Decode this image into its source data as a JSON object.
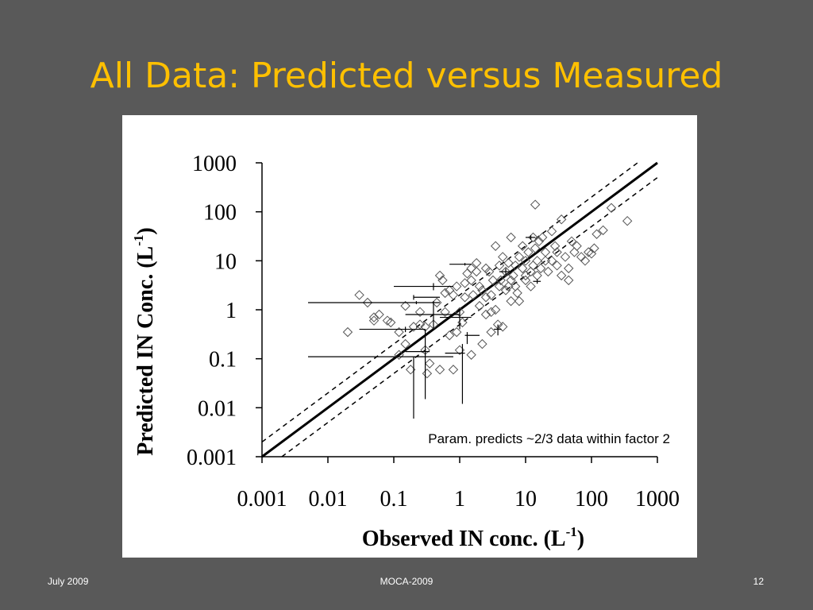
{
  "slide": {
    "title": "All Data: Predicted versus Measured",
    "footer_date": "July 2009",
    "footer_center": "MOCA-2009",
    "footer_page": "12"
  },
  "colors": {
    "background": "#595959",
    "title": "#FFC000",
    "panel": "#ffffff",
    "ink": "#000000",
    "marker": "#555555"
  },
  "chart_data": {
    "type": "scatter",
    "title": "",
    "xlabel": "Observed IN conc. (L",
    "xlabel_sup": "-1",
    "xlabel_close": ")",
    "ylabel": "Predicted IN Conc. (L",
    "ylabel_sup": "-1",
    "ylabel_close": ")",
    "xscale": "log",
    "yscale": "log",
    "xlim": [
      0.001,
      1000
    ],
    "ylim": [
      0.001,
      1000
    ],
    "xticks": [
      0.001,
      0.01,
      0.1,
      1,
      10,
      100,
      1000
    ],
    "yticks": [
      0.001,
      0.01,
      0.1,
      1,
      10,
      100,
      1000
    ],
    "xtick_labels": [
      "0.001",
      "0.01",
      "0.1",
      "1",
      "10",
      "100",
      "1000"
    ],
    "ytick_labels": [
      "0.001",
      "0.01",
      "0.1",
      "1",
      "10",
      "100",
      "1000"
    ],
    "grid": false,
    "annotation": "Param. predicts ~2/3 data within factor 2",
    "lines": {
      "one_to_one": {
        "style": "solid",
        "factor": 1
      },
      "factor_bounds": {
        "style": "dashed",
        "factors": [
          2,
          0.5
        ]
      }
    },
    "series": [
      {
        "marker": "diamond-open",
        "points": [
          [
            0.02,
            0.35
          ],
          [
            0.03,
            2.0
          ],
          [
            0.04,
            1.4
          ],
          [
            0.05,
            0.6
          ],
          [
            0.05,
            0.7
          ],
          [
            0.06,
            0.8
          ],
          [
            0.08,
            0.6
          ],
          [
            0.09,
            0.55
          ],
          [
            0.12,
            0.35
          ],
          [
            0.15,
            0.2
          ],
          [
            0.18,
            0.06
          ],
          [
            0.2,
            0.45
          ],
          [
            0.25,
            0.5
          ],
          [
            0.3,
            0.15
          ],
          [
            0.32,
            0.05
          ],
          [
            0.35,
            0.08
          ],
          [
            0.4,
            0.5
          ],
          [
            0.45,
            1.4
          ],
          [
            0.5,
            0.06
          ],
          [
            0.5,
            5.0
          ],
          [
            0.55,
            4.0
          ],
          [
            0.6,
            0.9
          ],
          [
            0.7,
            2.5
          ],
          [
            0.8,
            2.0
          ],
          [
            0.8,
            0.06
          ],
          [
            0.9,
            3.0
          ],
          [
            1.0,
            0.15
          ],
          [
            1.0,
            0.9
          ],
          [
            1.1,
            0.55
          ],
          [
            1.2,
            3.5
          ],
          [
            1.3,
            5.5
          ],
          [
            1.5,
            7.0
          ],
          [
            1.5,
            4.0
          ],
          [
            1.6,
            2.0
          ],
          [
            1.8,
            6.0
          ],
          [
            1.8,
            9.0
          ],
          [
            2.0,
            1.2
          ],
          [
            2.0,
            3.0
          ],
          [
            2.2,
            2.5
          ],
          [
            2.5,
            0.8
          ],
          [
            2.5,
            7.0
          ],
          [
            2.5,
            1.8
          ],
          [
            2.8,
            6.0
          ],
          [
            3.0,
            2.0
          ],
          [
            3.0,
            0.9
          ],
          [
            3.2,
            4.0
          ],
          [
            3.5,
            20
          ],
          [
            3.5,
            1.0
          ],
          [
            3.8,
            0.5
          ],
          [
            4.0,
            3.0
          ],
          [
            4.0,
            8.0
          ],
          [
            4.2,
            4.0
          ],
          [
            4.5,
            0.45
          ],
          [
            4.5,
            12.0
          ],
          [
            5.0,
            2.5
          ],
          [
            5.0,
            6.0
          ],
          [
            5.5,
            3.0
          ],
          [
            5.5,
            9.0
          ],
          [
            6.0,
            1.5
          ],
          [
            6.0,
            30
          ],
          [
            6.5,
            5.0
          ],
          [
            7.0,
            8.0
          ],
          [
            7.0,
            3.0
          ],
          [
            7.5,
            2.2
          ],
          [
            8.0,
            12.0
          ],
          [
            8.0,
            1.5
          ],
          [
            9.0,
            7.0
          ],
          [
            9.0,
            20
          ],
          [
            10,
            5.0
          ],
          [
            10,
            10
          ],
          [
            10,
            4.0
          ],
          [
            11,
            15
          ],
          [
            12,
            3.0
          ],
          [
            12,
            6.0
          ],
          [
            13,
            30
          ],
          [
            13,
            8.0
          ],
          [
            14,
            140
          ],
          [
            14,
            18
          ],
          [
            15,
            5.0
          ],
          [
            15,
            10
          ],
          [
            16,
            25
          ],
          [
            17,
            7.0
          ],
          [
            18,
            30
          ],
          [
            20,
            10
          ],
          [
            20,
            15
          ],
          [
            22,
            6.0
          ],
          [
            25,
            40
          ],
          [
            25,
            10
          ],
          [
            28,
            20
          ],
          [
            30,
            8.0
          ],
          [
            30,
            15
          ],
          [
            35,
            70
          ],
          [
            35,
            5.0
          ],
          [
            40,
            12
          ],
          [
            45,
            4.0
          ],
          [
            45,
            7.0
          ],
          [
            50,
            25
          ],
          [
            55,
            15
          ],
          [
            60,
            20
          ],
          [
            70,
            12
          ],
          [
            80,
            10
          ],
          [
            90,
            15
          ],
          [
            100,
            14
          ],
          [
            110,
            18
          ],
          [
            120,
            35
          ],
          [
            150,
            42
          ],
          [
            200,
            120
          ],
          [
            350,
            65
          ],
          [
            1.2,
            1.8
          ],
          [
            0.6,
            2.2
          ],
          [
            0.25,
            0.9
          ],
          [
            0.15,
            1.2
          ],
          [
            0.12,
            0.12
          ],
          [
            0.3,
            0.45
          ],
          [
            0.7,
            0.3
          ],
          [
            2.2,
            0.2
          ],
          [
            3.0,
            0.35
          ],
          [
            1.5,
            0.12
          ],
          [
            0.9,
            0.35
          ],
          [
            6.0,
            4.0
          ]
        ]
      },
      {
        "marker": "errorbar-cross",
        "points": [
          {
            "x": 0.22,
            "y": 1.4,
            "x_range": [
              0.005,
              0.5
            ],
            "y_range": [
              1.3,
              1.5
            ]
          },
          {
            "x": 0.2,
            "y": 1.8,
            "x_range": [
              0.2,
              0.5
            ],
            "y_range": [
              1.6,
              2.0
            ]
          },
          {
            "x": 0.2,
            "y": 0.11,
            "x_range": [
              0.005,
              0.8
            ],
            "y_range": [
              0.006,
              0.11
            ]
          },
          {
            "x": 0.3,
            "y": 0.14,
            "x_range": [
              0.15,
              0.35
            ],
            "y_range": [
              0.015,
              0.4
            ]
          },
          {
            "x": 0.15,
            "y": 0.4,
            "x_range": [
              0.03,
              0.3
            ],
            "y_range": [
              0.35,
              0.45
            ]
          },
          {
            "x": 0.4,
            "y": 0.8,
            "x_range": [
              0.15,
              1.0
            ],
            "y_range": [
              0.4,
              1.5
            ]
          },
          {
            "x": 0.4,
            "y": 3.0,
            "x_range": [
              0.1,
              0.8
            ],
            "y_range": [
              2.5,
              3.5
            ]
          },
          {
            "x": 1.0,
            "y": 0.7,
            "x_range": [
              0.5,
              1.5
            ],
            "y_range": [
              0.4,
              1.0
            ]
          },
          {
            "x": 1.1,
            "y": 0.13,
            "x_range": [
              0.6,
              1.2
            ],
            "y_range": [
              0.012,
              0.2
            ]
          },
          {
            "x": 1.3,
            "y": 0.3,
            "x_range": [
              1.2,
              2.0
            ],
            "y_range": [
              0.2,
              0.35
            ]
          },
          {
            "x": 1.2,
            "y": 8.5,
            "x_range": [
              0.7,
              1.5
            ],
            "y_range": [
              8.0,
              9.0
            ]
          },
          {
            "x": 3.8,
            "y": 0.4,
            "x_range": [
              3.3,
              4.3
            ],
            "y_range": [
              0.3,
              0.5
            ]
          },
          {
            "x": 5.0,
            "y": 6.0,
            "x_range": [
              4.0,
              6.0
            ],
            "y_range": [
              5.0,
              7.0
            ]
          },
          {
            "x": 15,
            "y": 3.8,
            "x_range": [
              13,
              17
            ],
            "y_range": [
              3.4,
              4.2
            ]
          },
          {
            "x": 12,
            "y": 30,
            "x_range": [
              10,
              14
            ],
            "y_range": [
              27,
              33
            ]
          }
        ]
      }
    ]
  }
}
